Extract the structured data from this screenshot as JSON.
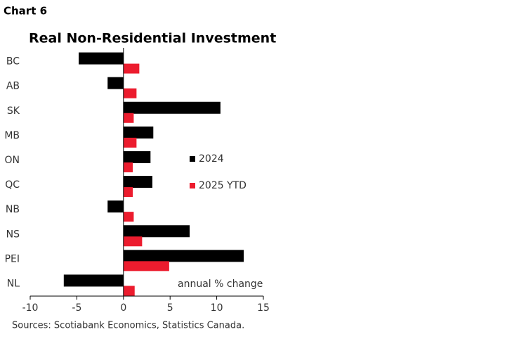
{
  "header": "Chart 6",
  "chart_data": {
    "type": "bar",
    "orientation": "horizontal",
    "title": "Real Non-Residential Investment",
    "categories": [
      "BC",
      "AB",
      "SK",
      "MB",
      "ON",
      "QC",
      "NB",
      "NS",
      "PEI",
      "NL"
    ],
    "series": [
      {
        "name": "2024",
        "color": "#000000",
        "values": [
          -4.8,
          -1.7,
          10.4,
          3.2,
          2.9,
          3.1,
          -1.7,
          7.1,
          12.9,
          -6.4
        ]
      },
      {
        "name": "2025 YTD",
        "color": "#ec1c2e",
        "values": [
          1.7,
          1.4,
          1.1,
          1.4,
          1.0,
          1.0,
          1.1,
          2.0,
          4.9,
          1.2
        ]
      }
    ],
    "xlim": [
      -10,
      15
    ],
    "xticks": [
      -10,
      -5,
      0,
      5,
      10,
      15
    ],
    "annotation": "annual % change",
    "source": "Sources: Scotiabank Economics, Statistics Canada."
  }
}
